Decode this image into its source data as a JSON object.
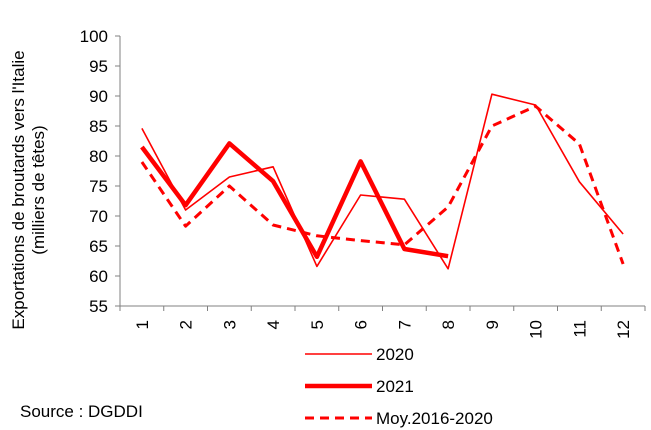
{
  "chart_data": {
    "type": "line",
    "ylabel_line1": "Exportations de broutards vers l'Italie",
    "ylabel_line2": "(milliers de têtes)",
    "ylim": [
      55,
      100
    ],
    "yticks": [
      55,
      60,
      65,
      70,
      75,
      80,
      85,
      90,
      95,
      100
    ],
    "categories": [
      "1",
      "2",
      "3",
      "4",
      "5",
      "6",
      "7",
      "8",
      "9",
      "10",
      "11",
      "12"
    ],
    "grid": false,
    "legend_position": "bottom",
    "series": [
      {
        "name": "2020",
        "color": "#ff0000",
        "style": "thin",
        "values": [
          84.6,
          71.0,
          76.5,
          78.2,
          61.6,
          73.5,
          72.8,
          61.2,
          90.3,
          88.5,
          75.7,
          67.0
        ]
      },
      {
        "name": "2021",
        "color": "#ff0000",
        "style": "thick",
        "values": [
          81.5,
          71.8,
          82.1,
          75.8,
          63.2,
          79.1,
          64.5,
          63.3,
          null,
          null,
          null,
          null
        ]
      },
      {
        "name": "Moy.2016-2020",
        "color": "#ff0000",
        "style": "dashed",
        "values": [
          79.0,
          68.3,
          75.0,
          68.5,
          66.7,
          65.9,
          65.2,
          71.5,
          85.0,
          88.3,
          82.0,
          62.0
        ]
      }
    ],
    "source": "Source : DGDDI"
  }
}
